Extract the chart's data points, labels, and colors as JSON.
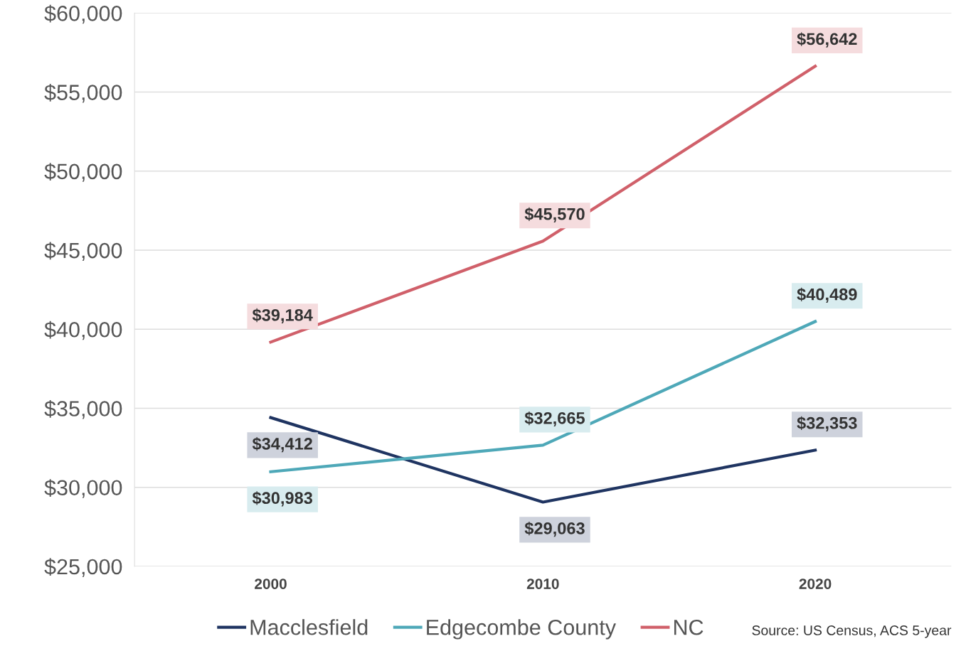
{
  "chart_data": {
    "type": "line",
    "categories": [
      "2000",
      "2010",
      "2020"
    ],
    "series": [
      {
        "name": "Macclesfield",
        "color": "#1f3461",
        "values": [
          34412,
          29063,
          32353
        ],
        "value_labels": [
          "$34,412",
          "$29,063",
          "$32,353"
        ]
      },
      {
        "name": "Edgecombe County",
        "color": "#4ea8b8",
        "values": [
          30983,
          32665,
          40489
        ],
        "value_labels": [
          "$30,983",
          "$32,665",
          "$40,489"
        ]
      },
      {
        "name": "NC",
        "color": "#d0606a",
        "values": [
          39184,
          45570,
          56642
        ],
        "value_labels": [
          "$39,184",
          "$45,570",
          "$56,642"
        ]
      }
    ],
    "ylim": [
      25000,
      60000
    ],
    "yticks": [
      {
        "value": 25000,
        "label": "$25,000"
      },
      {
        "value": 30000,
        "label": "$30,000"
      },
      {
        "value": 35000,
        "label": "$35,000"
      },
      {
        "value": 40000,
        "label": "$40,000"
      },
      {
        "value": 45000,
        "label": "$45,000"
      },
      {
        "value": 50000,
        "label": "$50,000"
      },
      {
        "value": 55000,
        "label": "$55,000"
      },
      {
        "value": 60000,
        "label": "$60,000"
      }
    ],
    "grid": "y",
    "legend": "bottom",
    "marker": "none",
    "line_style": "solid",
    "annotations": [
      "Source: US Census, ACS 5-year"
    ]
  }
}
